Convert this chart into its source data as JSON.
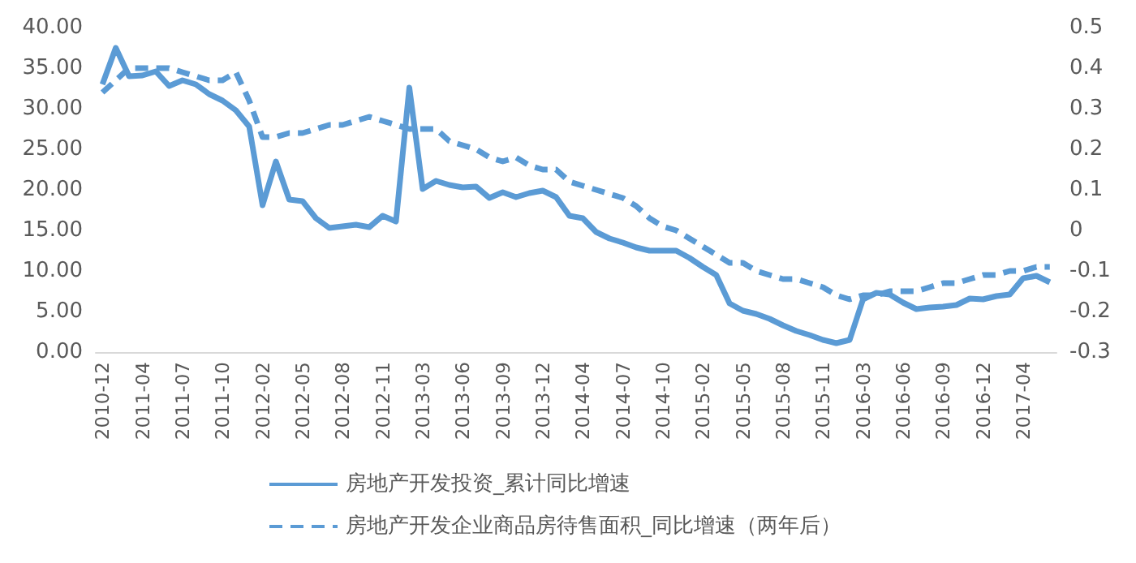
{
  "chart_data": {
    "type": "line",
    "categories": [
      "2010-12",
      null,
      null,
      "2011-04",
      null,
      null,
      "2011-07",
      null,
      null,
      "2011-10",
      null,
      null,
      "2012-02",
      null,
      null,
      "2012-05",
      null,
      null,
      "2012-08",
      null,
      null,
      "2012-11",
      null,
      null,
      "2013-03",
      null,
      null,
      "2013-06",
      null,
      null,
      "2013-09",
      null,
      null,
      "2013-12",
      null,
      null,
      "2014-04",
      null,
      null,
      "2014-07",
      null,
      null,
      "2014-10",
      null,
      null,
      "2015-02",
      null,
      null,
      "2015-05",
      null,
      null,
      "2015-08",
      null,
      null,
      "2015-11",
      null,
      null,
      "2016-03",
      null,
      null,
      "2016-06",
      null,
      null,
      "2016-09",
      null,
      null,
      "2016-12",
      null,
      null,
      "2017-04",
      null,
      null
    ],
    "series": [
      {
        "name": "房地产开发投资_累计同比增速",
        "color": "#5b9bd5",
        "line_style": "solid",
        "values": [
          33.0,
          37.5,
          34.0,
          34.1,
          34.6,
          32.8,
          33.5,
          33.0,
          31.8,
          31.0,
          29.8,
          27.8,
          18.1,
          23.5,
          18.8,
          18.6,
          16.5,
          15.3,
          15.5,
          15.7,
          15.4,
          16.8,
          16.1,
          32.6,
          20.1,
          21.1,
          20.6,
          20.3,
          20.4,
          19.0,
          19.7,
          19.1,
          19.6,
          19.9,
          19.1,
          16.8,
          16.5,
          14.8,
          14.0,
          13.5,
          12.9,
          12.5,
          12.5,
          12.5,
          11.6,
          10.5,
          9.5,
          6.0,
          5.1,
          4.7,
          4.1,
          3.3,
          2.6,
          2.1,
          1.5,
          1.1,
          1.5,
          6.5,
          7.3,
          7.1,
          6.1,
          5.3,
          5.5,
          5.6,
          5.8,
          6.6,
          6.5,
          6.9,
          7.1,
          9.1,
          9.4,
          8.6
        ]
      },
      {
        "name": "房地产开发企业商品房待售面积_同比增速（两年后）",
        "color": "#5b9bd5",
        "line_style": "dashed",
        "axis": "y2",
        "values": [
          0.34,
          0.37,
          0.4,
          0.4,
          0.4,
          0.4,
          0.39,
          0.38,
          0.37,
          0.37,
          0.39,
          0.32,
          0.23,
          0.23,
          0.24,
          0.24,
          0.25,
          0.26,
          0.26,
          0.27,
          0.28,
          0.27,
          0.26,
          0.25,
          0.25,
          0.25,
          0.22,
          0.21,
          0.2,
          0.18,
          0.17,
          0.18,
          0.16,
          0.15,
          0.15,
          0.12,
          0.11,
          0.1,
          0.09,
          0.08,
          0.06,
          0.03,
          0.01,
          0.0,
          -0.02,
          -0.04,
          -0.06,
          -0.08,
          -0.08,
          -0.1,
          -0.11,
          -0.12,
          -0.12,
          -0.13,
          -0.14,
          -0.16,
          -0.17,
          -0.16,
          -0.16,
          -0.15,
          -0.15,
          -0.15,
          -0.14,
          -0.13,
          -0.13,
          -0.12,
          -0.11,
          -0.11,
          -0.1,
          -0.1,
          -0.09,
          -0.09
        ]
      }
    ],
    "ylim": [
      0,
      40
    ],
    "yticks": [
      {
        "value": 0,
        "label": "0.00"
      },
      {
        "value": 5,
        "label": "5.00"
      },
      {
        "value": 10,
        "label": "10.00"
      },
      {
        "value": 15,
        "label": "15.00"
      },
      {
        "value": 20,
        "label": "20.00"
      },
      {
        "value": 25,
        "label": "25.00"
      },
      {
        "value": 30,
        "label": "30.00"
      },
      {
        "value": 35,
        "label": "35.00"
      },
      {
        "value": 40,
        "label": "40.00"
      }
    ],
    "y2lim": [
      -0.3,
      0.5
    ],
    "y2ticks": [
      -0.3,
      -0.2,
      -0.1,
      0,
      0.1,
      0.2,
      0.3,
      0.4,
      0.5
    ],
    "grid": false,
    "legend": "bottom",
    "marker": "none"
  }
}
